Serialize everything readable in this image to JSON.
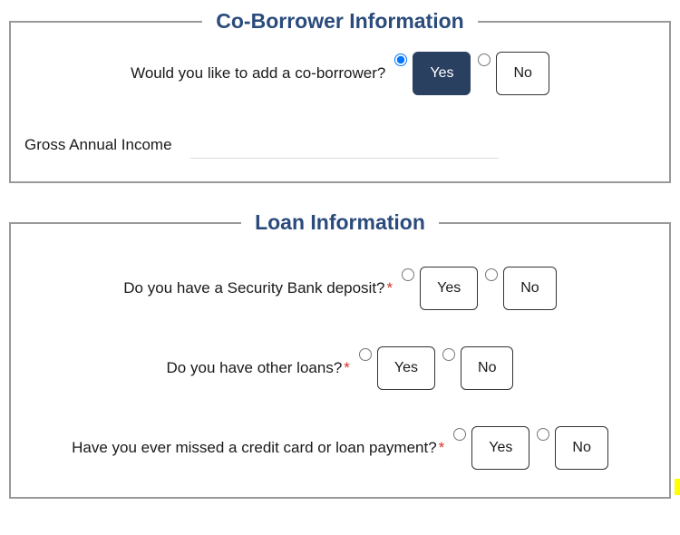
{
  "coBorrower": {
    "legend": "Co-Borrower Information",
    "question": "Would you like to add a co-borrower?",
    "yesLabel": "Yes",
    "noLabel": "No",
    "incomeLabel": "Gross Annual Income"
  },
  "loan": {
    "legend": "Loan Information",
    "q1": {
      "text": "Do you have a Security Bank deposit?",
      "yesLabel": "Yes",
      "noLabel": "No"
    },
    "q2": {
      "text": "Do you have other loans?",
      "yesLabel": "Yes",
      "noLabel": "No"
    },
    "q3": {
      "text": "Have you ever missed a credit card or loan payment?",
      "yesLabel": "Yes",
      "noLabel": "No"
    }
  },
  "colors": {
    "legendColor": "#2a4b7c",
    "selectedBg": "#2a4060",
    "borderColor": "#999999",
    "requiredColor": "#d93025"
  }
}
